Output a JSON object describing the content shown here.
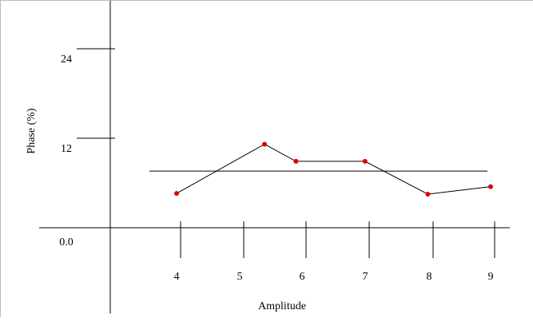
{
  "chart_data": {
    "type": "line",
    "xlabel": "Amplitude",
    "ylabel": "Phase (%)",
    "x_ticks": [
      "4",
      "5",
      "6",
      "7",
      "8",
      "9"
    ],
    "y_ticks": [
      "24",
      "12",
      "0.0"
    ],
    "xlim": [
      2.8,
      9.3
    ],
    "ylim": [
      -11.5,
      31.5
    ],
    "grid": false,
    "legend": "none",
    "colors": {
      "line": "#000000",
      "marker": "#e00000",
      "axis": "#000000"
    },
    "series": [
      {
        "x": [
          4.0,
          5.4,
          5.9,
          7.0,
          8.0,
          9.0
        ],
        "y": [
          4.6,
          11.2,
          8.9,
          8.9,
          4.5,
          5.5
        ]
      }
    ],
    "reference_line": {
      "x_start": 3.6,
      "x_end": 9.0,
      "y": 7.6
    }
  }
}
